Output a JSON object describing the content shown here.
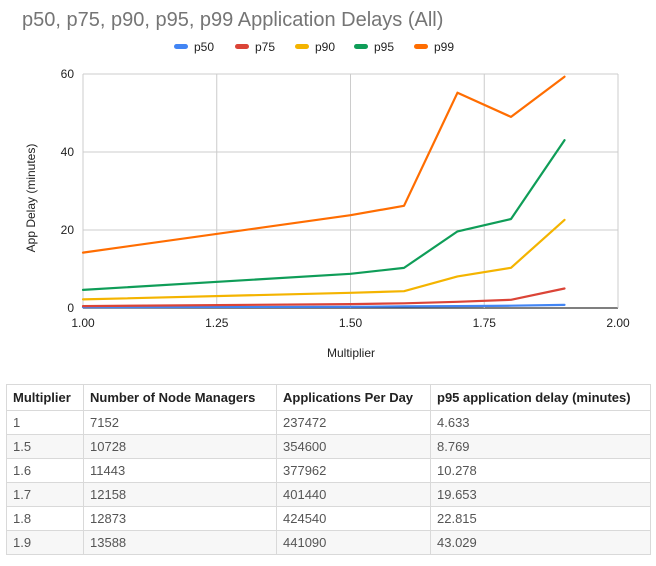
{
  "chart_data": {
    "type": "line",
    "title": "p50, p75, p90, p95, p99 Application Delays (All)",
    "xlabel": "Multiplier",
    "ylabel": "App Delay (minutes)",
    "xlim": [
      1.0,
      2.0
    ],
    "ylim": [
      0,
      60
    ],
    "x_ticks": [
      "1.00",
      "1.25",
      "1.50",
      "1.75",
      "2.00"
    ],
    "y_ticks": [
      "0",
      "20",
      "40",
      "60"
    ],
    "grid": true,
    "legend_position": "top",
    "x": [
      1,
      1.5,
      1.6,
      1.7,
      1.8,
      1.9
    ],
    "series": [
      {
        "name": "p50",
        "color": "#4285f4",
        "values": [
          0.2,
          0.3,
          0.4,
          0.5,
          0.6,
          0.8
        ]
      },
      {
        "name": "p75",
        "color": "#db4437",
        "values": [
          0.5,
          1.0,
          1.2,
          1.6,
          2.1,
          5.0
        ]
      },
      {
        "name": "p90",
        "color": "#f4b400",
        "values": [
          2.2,
          3.9,
          4.3,
          8.1,
          10.3,
          22.6
        ]
      },
      {
        "name": "p95",
        "color": "#0f9d58",
        "values": [
          4.633,
          8.769,
          10.278,
          19.653,
          22.815,
          43.029
        ]
      },
      {
        "name": "p99",
        "color": "#ff6d01",
        "values": [
          14.2,
          23.8,
          26.2,
          55.2,
          49.0,
          59.3
        ]
      }
    ]
  },
  "table": {
    "headers": [
      "Multiplier",
      "Number of Node Managers",
      "Applications Per Day",
      "p95 application delay (minutes)"
    ],
    "rows": [
      [
        "1",
        "7152",
        "237472",
        "4.633"
      ],
      [
        "1.5",
        "10728",
        "354600",
        "8.769"
      ],
      [
        "1.6",
        "11443",
        "377962",
        "10.278"
      ],
      [
        "1.7",
        "12158",
        "401440",
        "19.653"
      ],
      [
        "1.8",
        "12873",
        "424540",
        "22.815"
      ],
      [
        "1.9",
        "13588",
        "441090",
        "43.029"
      ]
    ]
  }
}
